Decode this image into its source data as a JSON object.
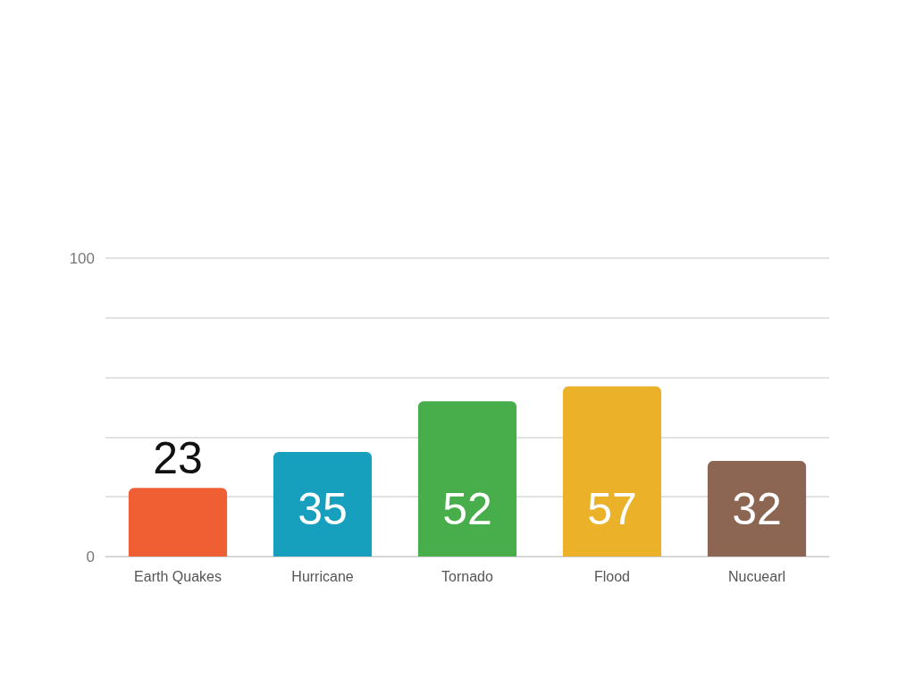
{
  "chart_data": {
    "type": "bar",
    "categories": [
      "Earth Quakes",
      "Hurricane",
      "Tornado",
      "Flood",
      "Nucuearl"
    ],
    "values": [
      23,
      35,
      52,
      57,
      32
    ],
    "colors": [
      "#f05f34",
      "#16a0bd",
      "#48ad4b",
      "#ebb128",
      "#8c6652"
    ],
    "ylim": [
      0,
      100
    ],
    "yticks": [
      0,
      {
        "value": 20,
        "label": null
      },
      {
        "value": 40,
        "label": null
      },
      {
        "value": 60,
        "label": null
      },
      {
        "value": 80,
        "label": null
      },
      100
    ],
    "grid": "y",
    "data_labels": true
  }
}
